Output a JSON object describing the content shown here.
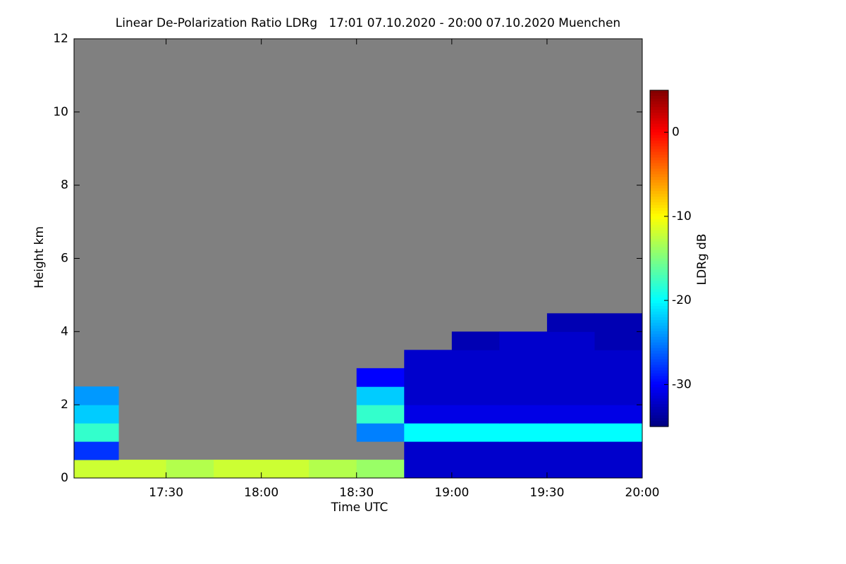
{
  "chart_data": {
    "type": "heatmap",
    "title": "Linear De-Polarization Ratio LDRg   17:01 07.10.2020 - 20:00 07.10.2020 Muenchen",
    "x_label": "Time UTC",
    "y_label": "Height km",
    "xlim": [
      17.0167,
      20.0
    ],
    "xticks": [
      {
        "value": 17.5,
        "label": "17:30"
      },
      {
        "value": 18.0,
        "label": "18:00"
      },
      {
        "value": 18.5,
        "label": "18:30"
      },
      {
        "value": 19.0,
        "label": "19:00"
      },
      {
        "value": 19.5,
        "label": "19:30"
      },
      {
        "value": 20.0,
        "label": "20:00"
      }
    ],
    "ylim": [
      0,
      12
    ],
    "yticks": [
      0,
      2,
      4,
      6,
      8,
      10,
      12
    ],
    "x_edges": [
      17.0167,
      17.25,
      17.5,
      17.75,
      18.0,
      18.25,
      18.5,
      18.75,
      19.0,
      19.25,
      19.5,
      19.75,
      20.0
    ],
    "y_edges": [
      0,
      0.5,
      1,
      1.5,
      2,
      2.5,
      3,
      3.5,
      4,
      4.5,
      5
    ],
    "values": [
      [
        -12,
        -12,
        -13,
        -12,
        -12,
        -13,
        -14,
        -32,
        -32,
        -32,
        -32,
        -32
      ],
      [
        -28,
        null,
        null,
        null,
        null,
        null,
        null,
        -32,
        -32,
        -32,
        -32,
        -32
      ],
      [
        -18,
        null,
        null,
        null,
        null,
        null,
        -25,
        -20,
        -20,
        -20,
        -20,
        -20
      ],
      [
        -22,
        null,
        null,
        null,
        null,
        null,
        -18,
        -31,
        -31,
        -31,
        -31,
        -31
      ],
      [
        -24,
        null,
        null,
        null,
        null,
        null,
        -22,
        -32,
        -32,
        -32,
        -32,
        -32
      ],
      [
        null,
        null,
        null,
        null,
        null,
        null,
        -30,
        -32,
        -32,
        -32,
        -32,
        -32
      ],
      [
        null,
        null,
        null,
        null,
        null,
        null,
        null,
        -32,
        -32,
        -32,
        -32,
        -32
      ],
      [
        null,
        null,
        null,
        null,
        null,
        null,
        null,
        null,
        -33,
        -32,
        -32,
        -33
      ],
      [
        null,
        null,
        null,
        null,
        null,
        null,
        null,
        null,
        null,
        null,
        -33,
        -33
      ],
      [
        null,
        null,
        null,
        null,
        null,
        null,
        null,
        null,
        null,
        null,
        null,
        null
      ]
    ],
    "nodata_color": "#808080",
    "colorbar": {
      "label": "LDRg dB",
      "clim": [
        -35,
        5
      ],
      "ticks": [
        -30,
        -20,
        -10,
        0
      ]
    }
  }
}
